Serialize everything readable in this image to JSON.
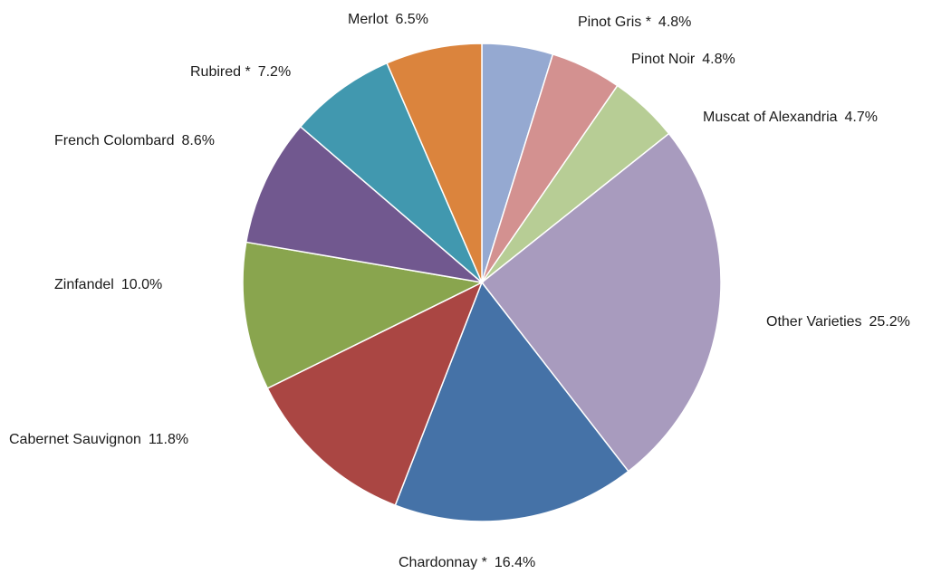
{
  "chart_data": {
    "type": "pie",
    "title": "",
    "start_angle_deg": -90,
    "direction": "clockwise",
    "slices": [
      {
        "label": "Pinot Gris *",
        "value": 4.8,
        "display": "4.8%",
        "color": "#95a9d1"
      },
      {
        "label": "Pinot Noir",
        "value": 4.8,
        "display": "4.8%",
        "color": "#d39190"
      },
      {
        "label": "Muscat of Alexandria",
        "value": 4.7,
        "display": "4.7%",
        "color": "#b7cd95"
      },
      {
        "label": "Other Varieties",
        "value": 25.2,
        "display": "25.2%",
        "color": "#a89bbe"
      },
      {
        "label": "Chardonnay *",
        "value": 16.4,
        "display": "16.4%",
        "color": "#4572a7"
      },
      {
        "label": "Cabernet Sauvignon",
        "value": 11.8,
        "display": "11.8%",
        "color": "#aa4643"
      },
      {
        "label": "Zinfandel",
        "value": 10.0,
        "display": "10.0%",
        "color": "#89a54e"
      },
      {
        "label": "French Colombard",
        "value": 8.6,
        "display": "8.6%",
        "color": "#71588f"
      },
      {
        "label": "Rubired *",
        "value": 7.2,
        "display": "7.2%",
        "color": "#4198af"
      },
      {
        "label": "Merlot",
        "value": 6.5,
        "display": "6.5%",
        "color": "#db843d"
      }
    ]
  }
}
